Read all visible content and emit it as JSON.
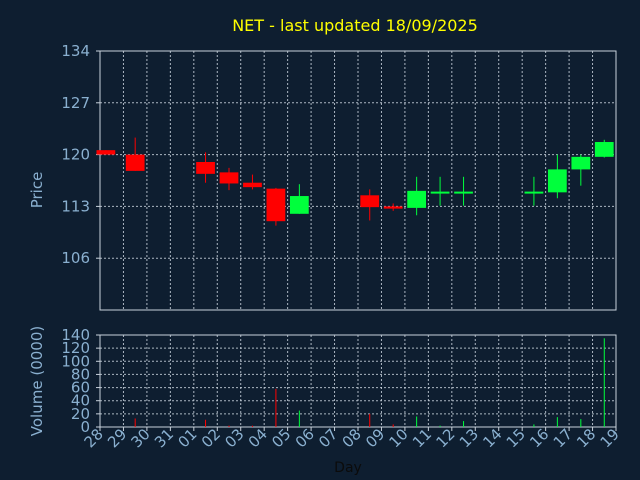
{
  "chart_data": {
    "type": "candlestick",
    "title": "NET - last updated 18/09/2025",
    "price_panel": {
      "ylabel": "Price",
      "ylim": [
        99,
        134
      ],
      "yticks": [
        106,
        113,
        120,
        127,
        134
      ]
    },
    "volume_panel": {
      "ylabel": "Volume (0000)",
      "ylim": [
        0,
        140
      ],
      "yticks": [
        0,
        20,
        40,
        60,
        80,
        100,
        120,
        140
      ]
    },
    "xlabel": "Day",
    "x_ticks": [
      "28",
      "29",
      "30",
      "31",
      "01",
      "02",
      "03",
      "04",
      "05",
      "06",
      "07",
      "08",
      "09",
      "10",
      "11",
      "12",
      "13",
      "14",
      "15",
      "16",
      "17",
      "18",
      "19"
    ],
    "candles": [
      {
        "x": -0.25,
        "open": 120.6,
        "high": 120.6,
        "low": 120.0,
        "close": 120.0,
        "volume": 0
      },
      {
        "x": 1,
        "open": 120.0,
        "high": 122.3,
        "low": 117.8,
        "close": 117.8,
        "volume": 13
      },
      {
        "x": 4,
        "open": 119.0,
        "high": 120.3,
        "low": 116.2,
        "close": 117.4,
        "volume": 11
      },
      {
        "x": 5,
        "open": 117.6,
        "high": 118.2,
        "low": 115.2,
        "close": 116.1,
        "volume": 2
      },
      {
        "x": 6,
        "open": 116.2,
        "high": 117.3,
        "low": 115.3,
        "close": 115.6,
        "volume": 2
      },
      {
        "x": 7,
        "open": 115.4,
        "high": 115.5,
        "low": 110.4,
        "close": 111.0,
        "volume": 58
      },
      {
        "x": 8,
        "open": 112.0,
        "high": 116.0,
        "low": 112.0,
        "close": 114.4,
        "volume": 25
      },
      {
        "x": 11,
        "open": 114.5,
        "high": 115.3,
        "low": 111.1,
        "close": 112.9,
        "volume": 20
      },
      {
        "x": 12,
        "open": 113.0,
        "high": 113.4,
        "low": 112.4,
        "close": 112.7,
        "volume": 4
      },
      {
        "x": 13,
        "open": 112.8,
        "high": 117.0,
        "low": 111.8,
        "close": 115.1,
        "volume": 16
      },
      {
        "x": 14,
        "open": 114.9,
        "high": 117.0,
        "low": 113.1,
        "close": 115.0,
        "volume": 2
      },
      {
        "x": 15,
        "open": 114.9,
        "high": 117.0,
        "low": 113.1,
        "close": 115.0,
        "volume": 9
      },
      {
        "x": 18,
        "open": 114.9,
        "high": 117.0,
        "low": 113.1,
        "close": 115.0,
        "volume": 4
      },
      {
        "x": 19,
        "open": 114.9,
        "high": 120.0,
        "low": 114.1,
        "close": 118.0,
        "volume": 15
      },
      {
        "x": 20,
        "open": 118.0,
        "high": 120.0,
        "low": 115.8,
        "close": 119.7,
        "volume": 12
      },
      {
        "x": 21,
        "open": 119.7,
        "high": 122.0,
        "low": 119.6,
        "close": 121.7,
        "volume": 135
      }
    ],
    "colors": {
      "up": "#00ff3c",
      "down": "#ff0000"
    },
    "grid": true
  }
}
